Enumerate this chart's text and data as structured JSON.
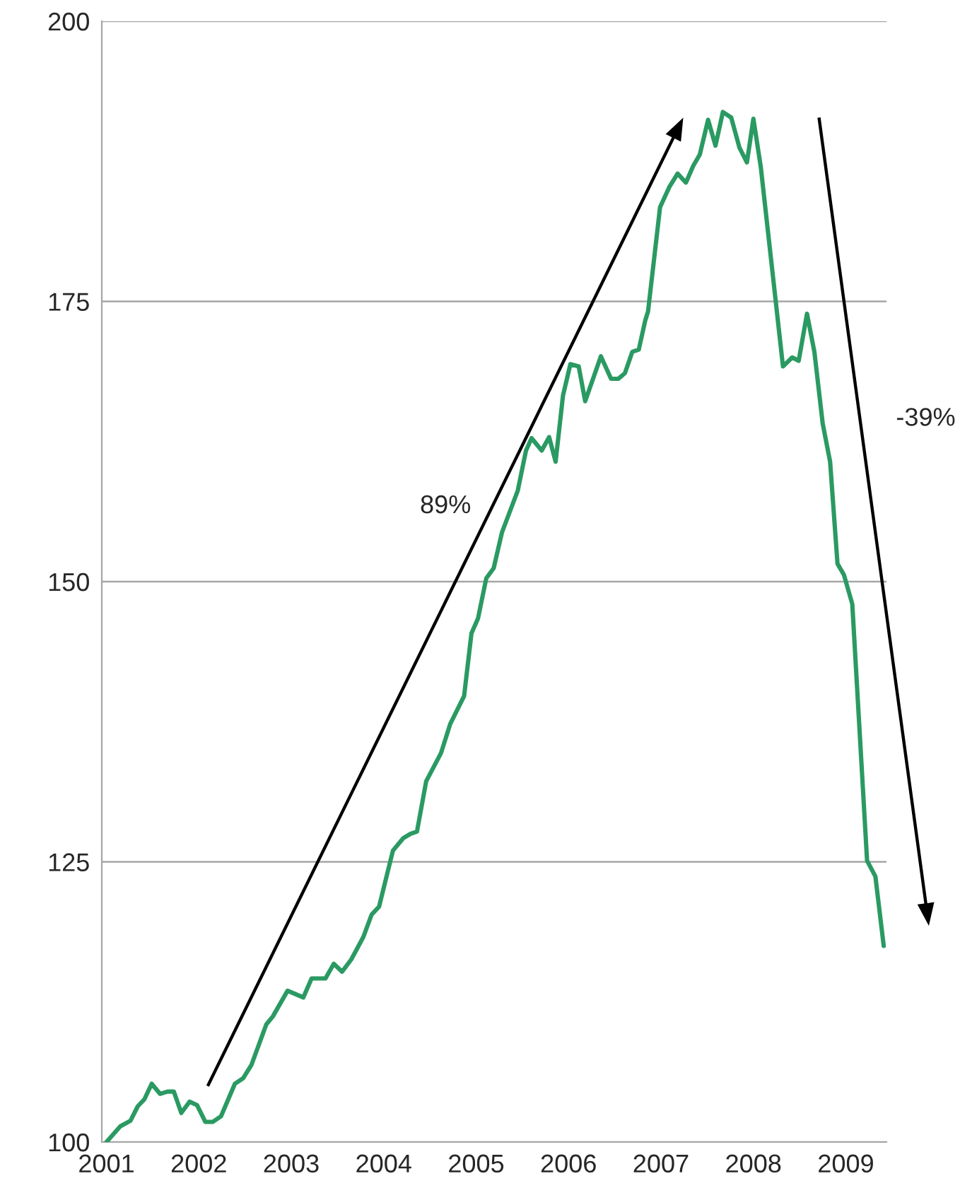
{
  "chart_data": {
    "type": "line",
    "x": [
      2001.0,
      2001.15,
      2001.26,
      2001.34,
      2001.41,
      2001.49,
      2001.58,
      2001.66,
      2001.73,
      2001.81,
      2001.9,
      2001.98,
      2002.07,
      2002.15,
      2002.24,
      2002.39,
      2002.48,
      2002.57,
      2002.73,
      2002.8,
      2002.96,
      2003.13,
      2003.22,
      2003.37,
      2003.46,
      2003.55,
      2003.65,
      2003.78,
      2003.87,
      2003.95,
      2004.1,
      2004.21,
      2004.29,
      2004.36,
      2004.46,
      2004.62,
      2004.72,
      2004.87,
      2004.95,
      2005.02,
      2005.11,
      2005.19,
      2005.28,
      2005.45,
      2005.54,
      2005.6,
      2005.71,
      2005.79,
      2005.86,
      2005.94,
      2006.02,
      2006.11,
      2006.18,
      2006.35,
      2006.46,
      2006.54,
      2006.61,
      2006.69,
      2006.76,
      2006.83,
      2006.86,
      2006.99,
      2007.09,
      2007.18,
      2007.27,
      2007.35,
      2007.42,
      2007.51,
      2007.59,
      2007.67,
      2007.76,
      2007.85,
      2007.93,
      2008.0,
      2008.08,
      2008.32,
      2008.42,
      2008.49,
      2008.58,
      2008.66,
      2008.75,
      2008.83,
      2008.91,
      2008.98,
      2009.07,
      2009.23,
      2009.32,
      2009.41
    ],
    "values": [
      100,
      101.4,
      101.9,
      103.2,
      103.8,
      105.2,
      104.3,
      104.5,
      104.5,
      102.6,
      103.6,
      103.3,
      101.8,
      101.8,
      102.3,
      105.2,
      105.7,
      106.9,
      110.5,
      111.2,
      113.5,
      112.9,
      114.6,
      114.6,
      115.9,
      115.2,
      116.3,
      118.3,
      120.3,
      121.0,
      126.0,
      127.1,
      127.5,
      127.7,
      132.2,
      134.7,
      137.3,
      139.8,
      145.4,
      146.7,
      150.3,
      151.2,
      154.4,
      158.1,
      161.7,
      162.8,
      161.7,
      162.9,
      160.7,
      166.6,
      169.4,
      169.2,
      166.1,
      170.1,
      168.1,
      168.1,
      168.6,
      170.5,
      170.7,
      173.3,
      174.1,
      183.4,
      185.2,
      186.4,
      185.6,
      187.1,
      188.1,
      191.2,
      188.9,
      191.9,
      191.4,
      188.7,
      187.4,
      191.3,
      187.0,
      169.2,
      170.0,
      169.7,
      173.9,
      170.5,
      164.1,
      160.7,
      151.6,
      150.6,
      148.0,
      125.1,
      123.7,
      117.5
    ],
    "color": "#2a9a62",
    "xlim": [
      2000.95,
      2009.44
    ],
    "xticks": [
      2001,
      2002,
      2003,
      2004,
      2005,
      2006,
      2007,
      2008,
      2009
    ],
    "ylim": [
      100,
      200
    ],
    "yticks": [
      100,
      125,
      150,
      175,
      200
    ],
    "grid": "y",
    "annotations": [
      "89%",
      "-39%"
    ]
  }
}
